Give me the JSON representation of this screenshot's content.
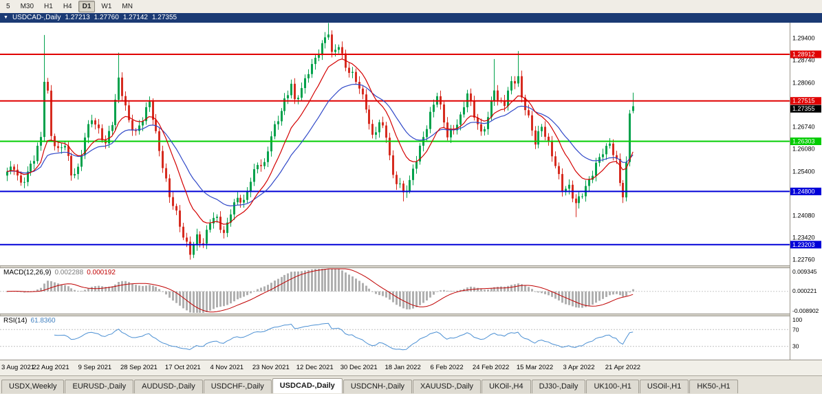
{
  "toolbar": {
    "timeframes": [
      "5",
      "M30",
      "H1",
      "H4",
      "D1",
      "W1",
      "MN"
    ],
    "active": "D1"
  },
  "window": {
    "title_symbol": "USDCAD-,Daily",
    "ohlc": {
      "open": "1.27213",
      "high": "1.27760",
      "low": "1.27142",
      "close": "1.27355"
    }
  },
  "chart_data": {
    "type": "candlestick",
    "symbol": "USDCAD",
    "timeframe": "Daily",
    "bars": 186,
    "price_axis": {
      "min": 1.2258,
      "max": 1.2986,
      "labels": [
        "1.29400",
        "1.28740",
        "1.28060",
        "1.26740",
        "1.26080",
        "1.25400",
        "1.24080",
        "1.23420",
        "1.22760"
      ]
    },
    "horizontal_lines": [
      {
        "price": 1.28912,
        "label": "1.28912",
        "color": "#e00000"
      },
      {
        "price": 1.27515,
        "label": "1.27515",
        "color": "#e00000"
      },
      {
        "price": 1.26303,
        "label": "1.26303",
        "color": "#00cc00"
      },
      {
        "price": 1.248,
        "label": "1.24800",
        "color": "#0000d8"
      },
      {
        "price": 1.23203,
        "label": "1.23203",
        "color": "#0000d8"
      }
    ],
    "current_price_label": "1.27355",
    "current_bar": {
      "open": 1.27213,
      "high": 1.2776,
      "low": 1.27142,
      "close": 1.27355
    },
    "trajectory": [
      [
        0,
        1.2535
      ],
      [
        2,
        1.2555
      ],
      [
        4,
        1.2505
      ],
      [
        6,
        1.2535
      ],
      [
        8,
        1.2575
      ],
      [
        10,
        1.264
      ],
      [
        11,
        1.282
      ],
      [
        12,
        1.278
      ],
      [
        13,
        1.265
      ],
      [
        15,
        1.26
      ],
      [
        17,
        1.2618
      ],
      [
        19,
        1.2532
      ],
      [
        21,
        1.255
      ],
      [
        23,
        1.2645
      ],
      [
        25,
        1.2695
      ],
      [
        27,
        1.266
      ],
      [
        29,
        1.2628
      ],
      [
        31,
        1.269
      ],
      [
        33,
        1.2812
      ],
      [
        34,
        1.277
      ],
      [
        36,
        1.269
      ],
      [
        38,
        1.266
      ],
      [
        40,
        1.27
      ],
      [
        42,
        1.2745
      ],
      [
        44,
        1.265
      ],
      [
        46,
        1.256
      ],
      [
        48,
        1.247
      ],
      [
        50,
        1.241
      ],
      [
        52,
        1.234
      ],
      [
        54,
        1.23
      ],
      [
        56,
        1.2348
      ],
      [
        58,
        1.232
      ],
      [
        60,
        1.2388
      ],
      [
        62,
        1.24
      ],
      [
        64,
        1.2355
      ],
      [
        66,
        1.242
      ],
      [
        68,
        1.2455
      ],
      [
        70,
        1.2445
      ],
      [
        72,
        1.252
      ],
      [
        74,
        1.2565
      ],
      [
        76,
        1.2555
      ],
      [
        78,
        1.2645
      ],
      [
        80,
        1.27
      ],
      [
        82,
        1.2755
      ],
      [
        84,
        1.28
      ],
      [
        85,
        1.2745
      ],
      [
        87,
        1.2785
      ],
      [
        89,
        1.2845
      ],
      [
        91,
        1.288
      ],
      [
        93,
        1.2915
      ],
      [
        95,
        1.2955
      ],
      [
        96,
        1.289
      ],
      [
        98,
        1.2925
      ],
      [
        100,
        1.2855
      ],
      [
        102,
        1.2825
      ],
      [
        104,
        1.279
      ],
      [
        106,
        1.2735
      ],
      [
        108,
        1.2645
      ],
      [
        110,
        1.2685
      ],
      [
        112,
        1.2645
      ],
      [
        114,
        1.2525
      ],
      [
        116,
        1.2505
      ],
      [
        117,
        1.2475
      ],
      [
        119,
        1.2505
      ],
      [
        121,
        1.2575
      ],
      [
        123,
        1.2645
      ],
      [
        125,
        1.2715
      ],
      [
        127,
        1.277
      ],
      [
        129,
        1.2685
      ],
      [
        130,
        1.2645
      ],
      [
        132,
        1.2672
      ],
      [
        134,
        1.2705
      ],
      [
        136,
        1.2772
      ],
      [
        138,
        1.2705
      ],
      [
        140,
        1.2655
      ],
      [
        142,
        1.2705
      ],
      [
        144,
        1.279
      ],
      [
        145,
        1.2745
      ],
      [
        147,
        1.2742
      ],
      [
        149,
        1.2812
      ],
      [
        151,
        1.2822
      ],
      [
        152,
        1.2762
      ],
      [
        154,
        1.2695
      ],
      [
        156,
        1.2625
      ],
      [
        158,
        1.2682
      ],
      [
        160,
        1.2625
      ],
      [
        162,
        1.2555
      ],
      [
        164,
        1.2482
      ],
      [
        166,
        1.2495
      ],
      [
        168,
        1.2448
      ],
      [
        170,
        1.2472
      ],
      [
        172,
        1.2505
      ],
      [
        174,
        1.2562
      ],
      [
        176,
        1.2605
      ],
      [
        178,
        1.2622
      ],
      [
        180,
        1.2565
      ],
      [
        181,
        1.2502
      ],
      [
        182,
        1.2468
      ],
      [
        183,
        1.2562
      ],
      [
        184,
        1.2721
      ],
      [
        185,
        1.27355
      ]
    ],
    "spike_highs": [
      [
        11,
        1.2949
      ],
      [
        33,
        1.2896
      ],
      [
        95,
        1.2985
      ],
      [
        144,
        1.2877
      ],
      [
        151,
        1.2901
      ]
    ],
    "spike_lows": [
      [
        54,
        1.2288
      ],
      [
        117,
        1.245
      ],
      [
        168,
        1.2403
      ],
      [
        182,
        1.2458
      ]
    ],
    "date_labels": [
      [
        0,
        "3 Aug 2021"
      ],
      [
        13,
        "22 Aug 2021"
      ],
      [
        26,
        "9 Sep 2021"
      ],
      [
        39,
        "28 Sep 2021"
      ],
      [
        52,
        "17 Oct 2021"
      ],
      [
        65,
        "4 Nov 2021"
      ],
      [
        78,
        "23 Nov 2021"
      ],
      [
        91,
        "12 Dec 2021"
      ],
      [
        104,
        "30 Dec 2021"
      ],
      [
        117,
        "18 Jan 2022"
      ],
      [
        130,
        "6 Feb 2022"
      ],
      [
        143,
        "24 Feb 2022"
      ],
      [
        156,
        "15 Mar 2022"
      ],
      [
        169,
        "3 Apr 2022"
      ],
      [
        182,
        "21 Apr 2022"
      ]
    ],
    "indicators": {
      "ma_fast": {
        "type": "EMA",
        "period": 12,
        "color": "#d40000"
      },
      "ma_slow": {
        "type": "EMA",
        "period": 26,
        "color": "#3048c8"
      },
      "macd": {
        "label": "MACD(12,26,9)",
        "value_main": "0.002288",
        "value_signal": "0.000192",
        "range": {
          "max": 0.009345,
          "min": -0.008902
        },
        "scale_labels": [
          "0.009345",
          "0.000221",
          "-0.008902"
        ]
      },
      "rsi": {
        "label": "RSI(14)",
        "value": "61.8360",
        "period": 14,
        "levels": [
          70,
          30
        ],
        "scale_labels": [
          "100",
          "70",
          "30"
        ]
      }
    }
  },
  "tabs": {
    "items": [
      "USDX,Weekly",
      "EURUSD-,Daily",
      "AUDUSD-,Daily",
      "USDCHF-,Daily",
      "USDCAD-,Daily",
      "USDCNH-,Daily",
      "XAUUSD-,Daily",
      "UKOil-,H4",
      "DJ30-,Daily",
      "UK100-,H1",
      "USOil-,H1",
      "HK50-,H1"
    ],
    "active_index": 4
  },
  "colors": {
    "bull": "#00a14b",
    "bear": "#d62b1f",
    "macd_hist": "#b0b0b0",
    "macd_signal": "#c00000",
    "rsi_line": "#4a8fd3",
    "current_price_bg": "#000000",
    "titlebar_bg": "#1b3a74"
  }
}
